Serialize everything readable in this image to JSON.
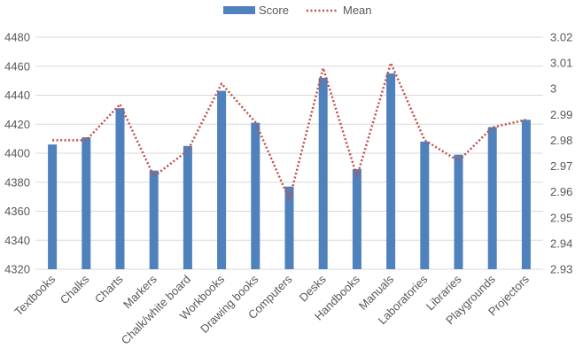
{
  "chart_data": {
    "type": "bar",
    "categories": [
      "Textbooks",
      "Chalks",
      "Charts",
      "Markers",
      "Chalk/white board",
      "Workbooks",
      "Drawing books",
      "Computers",
      "Desks",
      "Handbooks",
      "Manuals",
      "Laboratories",
      "Libraries",
      "Playgrounds",
      "Projectors"
    ],
    "series": [
      {
        "name": "Score",
        "type": "bar",
        "axis": "left",
        "color": "#4F81BD",
        "values": [
          4406,
          4411,
          4431,
          4388,
          4405,
          4443,
          4421,
          4377,
          4452,
          4389,
          4455,
          4408,
          4399,
          4418,
          4423
        ]
      },
      {
        "name": "Mean",
        "type": "line",
        "axis": "right",
        "color": "#C0504D",
        "style": "dotted",
        "values": [
          2.98,
          2.98,
          2.994,
          2.966,
          2.976,
          3.002,
          2.987,
          2.957,
          3.008,
          2.966,
          3.01,
          2.98,
          2.972,
          2.985,
          2.988
        ]
      }
    ],
    "y_left": {
      "min": 4320,
      "max": 4480,
      "ticks": [
        "4320",
        "4340",
        "4360",
        "4380",
        "4400",
        "4420",
        "4440",
        "4460",
        "4480"
      ]
    },
    "y_right": {
      "min": 2.93,
      "max": 3.02,
      "ticks": [
        "2.93",
        "2.94",
        "2.95",
        "2.96",
        "2.97",
        "2.98",
        "2.99",
        "3",
        "3.01",
        "3.02"
      ]
    },
    "grid": true,
    "legend_position": "top-center"
  }
}
